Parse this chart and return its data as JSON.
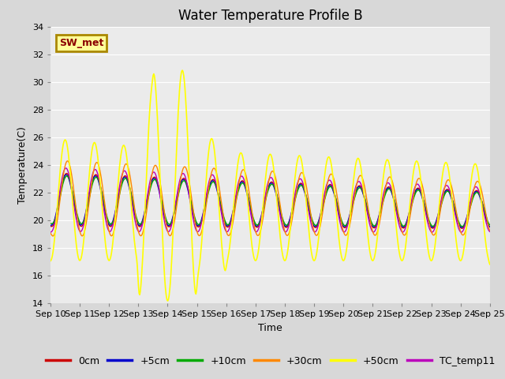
{
  "title": "Water Temperature Profile B",
  "xlabel": "Time",
  "ylabel": "Temperature(C)",
  "ylim": [
    14,
    34
  ],
  "yticks": [
    14,
    16,
    18,
    20,
    22,
    24,
    26,
    28,
    30,
    32,
    34
  ],
  "xlim": [
    0,
    15
  ],
  "series_names": [
    "0cm",
    "+5cm",
    "+10cm",
    "+30cm",
    "+50cm",
    "TC_temp11"
  ],
  "series_colors": [
    "#cc0000",
    "#0000cc",
    "#00aa00",
    "#ff8800",
    "#ffff00",
    "#bb00bb"
  ],
  "series_linewidths": [
    1.0,
    1.0,
    1.0,
    1.0,
    1.2,
    1.0
  ],
  "bg_color": "#d8d8d8",
  "plot_bg_color": "#ebebeb",
  "grid_color": "#ffffff",
  "annotation_text": "SW_met",
  "annotation_fg": "#8b0000",
  "annotation_bg": "#ffff99",
  "annotation_edge": "#aa8800",
  "title_fontsize": 12,
  "label_fontsize": 9,
  "tick_fontsize": 8,
  "legend_fontsize": 9
}
